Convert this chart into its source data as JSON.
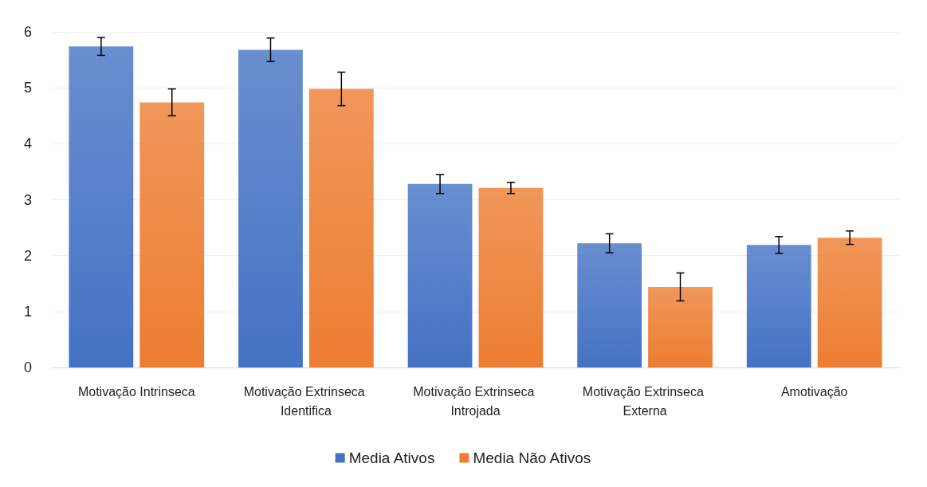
{
  "chart_data": {
    "type": "bar",
    "categories": [
      "Motivação Intrinseca",
      "Motivação Extrinseca Identifica",
      "Motivação Extrinseca Introjada",
      "Motivação Extrinseca Externa",
      "Amotivação"
    ],
    "series": [
      {
        "name": "Media Ativos",
        "color": "#4472c4",
        "values": [
          5.74,
          5.68,
          3.28,
          2.22,
          2.19
        ],
        "errors": [
          0.16,
          0.21,
          0.17,
          0.17,
          0.15
        ]
      },
      {
        "name": "Media Não Ativos",
        "color": "#ed7d31",
        "values": [
          4.74,
          4.98,
          3.21,
          1.44,
          2.32
        ],
        "errors": [
          0.24,
          0.3,
          0.1,
          0.25,
          0.12
        ]
      }
    ],
    "ylim": [
      0,
      6
    ],
    "yticks": [
      0,
      1,
      2,
      3,
      4,
      5,
      6
    ],
    "grid": "y",
    "legend": "bottom"
  }
}
